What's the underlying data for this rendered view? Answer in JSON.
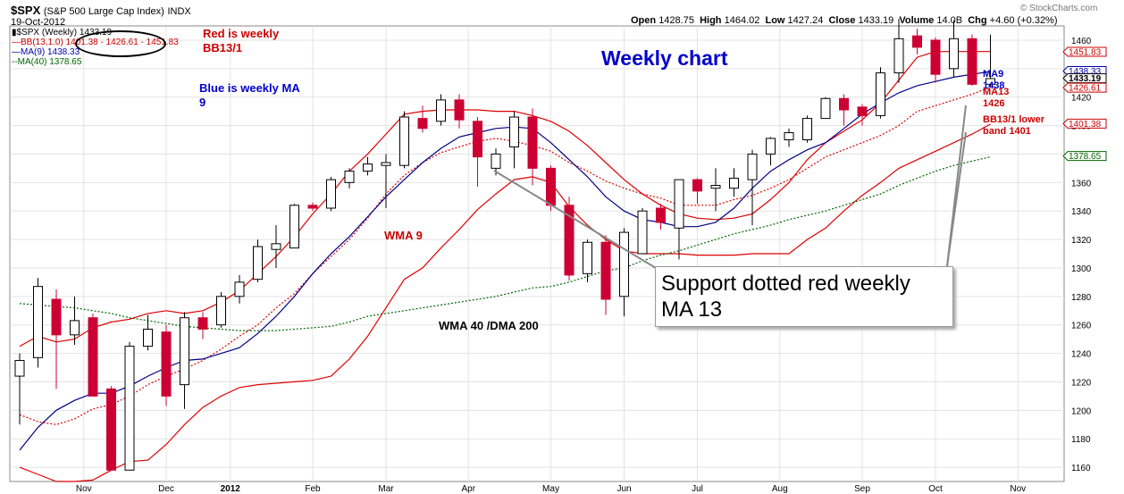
{
  "header": {
    "symbol": "$SPX",
    "name": "(S&P 500 Large Cap Index)",
    "exchange": "INDX",
    "date": "19-Oct-2012",
    "open_label": "Open",
    "open": "1428.75",
    "high_label": "High",
    "high": "1464.02",
    "low_label": "Low",
    "low": "1427.24",
    "close_label": "Close",
    "close": "1433.19",
    "volume_label": "Volume",
    "volume": "14.0B",
    "chg_label": "Chg",
    "chg": "+4.60 (+0.32%)",
    "watermark": "© StockCharts.com"
  },
  "legend": [
    {
      "text": "$SPX (Weekly) 1433.19",
      "color": "#000000",
      "marker": "candle"
    },
    {
      "text": "BB(13,1.0) 1401.38 - 1426.61 - 1451.83",
      "color": "#cc0000",
      "marker": "line"
    },
    {
      "text": "MA(9) 1438.33",
      "color": "#0000aa",
      "marker": "line"
    },
    {
      "text": "MA(40) 1378.65",
      "color": "#006600",
      "marker": "dotted"
    }
  ],
  "annotations": {
    "red_weekly": "Red is weekly\nBB13/1",
    "blue_weekly": "Blue is weekly MA\n9",
    "weekly_chart": "Weekly chart",
    "wma9": "WMA 9",
    "wma40": "WMA 40 /DMA 200",
    "support": "Support dotted red weekly\nMA 13",
    "ma9_note": "MA9\n1438",
    "ma13_note": "MA13\n1426",
    "bb_note": "BB13/1 lower\nband 1401"
  },
  "chart_data": {
    "type": "candlestick",
    "title": "$SPX (S&P 500 Large Cap Index) INDX",
    "ylim": [
      1150,
      1470
    ],
    "y_ticks": [
      1160,
      1180,
      1200,
      1220,
      1240,
      1260,
      1280,
      1300,
      1320,
      1340,
      1360,
      1380,
      1400,
      1420,
      1440,
      1460
    ],
    "x_tick_labels": [
      "Nov",
      "Dec",
      "2012",
      "Feb",
      "Mar",
      "Apr",
      "May",
      "Jun",
      "Jul",
      "Aug",
      "Sep",
      "Oct",
      "Nov"
    ],
    "x_tick_index": [
      3.5,
      8,
      11.5,
      16,
      20,
      24.5,
      29,
      33,
      37,
      41.5,
      46,
      50,
      54.5
    ],
    "grid": true,
    "price_labels": [
      {
        "value": 1451.83,
        "text": "1451.83",
        "color": "#cc0000"
      },
      {
        "value": 1438.33,
        "text": "1438.33",
        "color": "#0000aa"
      },
      {
        "value": 1433.19,
        "text": "1433.19",
        "color": "#000000"
      },
      {
        "value": 1426.61,
        "text": "1426.61",
        "color": "#cc0000"
      },
      {
        "value": 1401.38,
        "text": "1401.38",
        "color": "#cc0000"
      },
      {
        "value": 1378.65,
        "text": "1378.65",
        "color": "#006600"
      }
    ],
    "candles": [
      [
        1224,
        1235,
        1190,
        1240
      ],
      [
        1237,
        1287,
        1230,
        1293
      ],
      [
        1278,
        1253,
        1215,
        1285
      ],
      [
        1253,
        1263,
        1246,
        1280
      ],
      [
        1265,
        1210,
        1210,
        1268
      ],
      [
        1215,
        1158,
        1158,
        1217
      ],
      [
        1158,
        1245,
        1158,
        1248
      ],
      [
        1245,
        1257,
        1242,
        1267
      ],
      [
        1255,
        1210,
        1203,
        1260
      ],
      [
        1218,
        1265,
        1201,
        1269
      ],
      [
        1265,
        1257,
        1250,
        1269
      ],
      [
        1260,
        1280,
        1258,
        1283
      ],
      [
        1280,
        1290,
        1275,
        1295
      ],
      [
        1292,
        1315,
        1290,
        1320
      ],
      [
        1313,
        1317,
        1300,
        1330
      ],
      [
        1314,
        1344,
        1314,
        1345
      ],
      [
        1344,
        1342,
        1340,
        1346
      ],
      [
        1342,
        1362,
        1340,
        1364
      ],
      [
        1360,
        1368,
        1356,
        1370
      ],
      [
        1368,
        1373,
        1365,
        1378
      ],
      [
        1372,
        1374,
        1342,
        1380
      ],
      [
        1372,
        1406,
        1370,
        1410
      ],
      [
        1405,
        1398,
        1395,
        1414
      ],
      [
        1403,
        1418,
        1400,
        1422
      ],
      [
        1418,
        1404,
        1398,
        1422
      ],
      [
        1403,
        1378,
        1357,
        1406
      ],
      [
        1370,
        1380,
        1365,
        1384
      ],
      [
        1385,
        1406,
        1370,
        1410
      ],
      [
        1406,
        1370,
        1358,
        1412
      ],
      [
        1370,
        1344,
        1340,
        1372
      ],
      [
        1344,
        1295,
        1291,
        1350
      ],
      [
        1296,
        1318,
        1290,
        1320
      ],
      [
        1318,
        1278,
        1267,
        1323
      ],
      [
        1280,
        1325,
        1266,
        1328
      ],
      [
        1310,
        1340,
        1310,
        1342
      ],
      [
        1342,
        1332,
        1327,
        1345
      ],
      [
        1328,
        1362,
        1306,
        1362
      ],
      [
        1362,
        1354,
        1345,
        1363
      ],
      [
        1356,
        1358,
        1340,
        1370
      ],
      [
        1356,
        1363,
        1350,
        1370
      ],
      [
        1362,
        1380,
        1330,
        1383
      ],
      [
        1380,
        1391,
        1372,
        1392
      ],
      [
        1390,
        1395,
        1385,
        1398
      ],
      [
        1390,
        1405,
        1388,
        1407
      ],
      [
        1405,
        1419,
        1405,
        1420
      ],
      [
        1419,
        1411,
        1400,
        1422
      ],
      [
        1413,
        1407,
        1400,
        1415
      ],
      [
        1407,
        1437,
        1405,
        1441
      ],
      [
        1437,
        1461,
        1430,
        1475
      ],
      [
        1463,
        1455,
        1450,
        1468
      ],
      [
        1460,
        1436,
        1430,
        1462
      ],
      [
        1440,
        1461,
        1434,
        1474
      ],
      [
        1461,
        1429,
        1428,
        1464
      ],
      [
        1429,
        1433,
        1427,
        1464
      ]
    ],
    "series": [
      {
        "name": "BB(13,1.0) upper",
        "style": "solid",
        "color": "#dd0000",
        "values": [
          1245,
          1252,
          1248,
          1250,
          1258,
          1262,
          1264,
          1268,
          1270,
          1268,
          1270,
          1276,
          1284,
          1296,
          1308,
          1322,
          1338,
          1352,
          1368,
          1380,
          1394,
          1408,
          1410,
          1411,
          1411,
          1411,
          1410,
          1410,
          1407,
          1403,
          1396,
          1386,
          1374,
          1362,
          1352,
          1344,
          1338,
          1335,
          1334,
          1335,
          1338,
          1348,
          1360,
          1376,
          1388,
          1396,
          1404,
          1416,
          1432,
          1448,
          1452,
          1452,
          1452,
          1452
        ]
      },
      {
        "name": "BB(13,1.0) middle",
        "style": "dotted",
        "color": "#dd0000",
        "values": [
          1197,
          1192,
          1190,
          1194,
          1201,
          1204,
          1210,
          1218,
          1224,
          1229,
          1235,
          1243,
          1252,
          1260,
          1272,
          1282,
          1296,
          1308,
          1320,
          1335,
          1352,
          1365,
          1374,
          1381,
          1385,
          1389,
          1391,
          1389,
          1386,
          1382,
          1374,
          1368,
          1361,
          1356,
          1352,
          1349,
          1344,
          1344,
          1344,
          1348,
          1351,
          1356,
          1362,
          1370,
          1378,
          1383,
          1388,
          1393,
          1400,
          1410,
          1414,
          1418,
          1422,
          1427
        ]
      },
      {
        "name": "BB(13,1.0) lower",
        "style": "solid",
        "color": "#dd0000",
        "values": [
          1160,
          1155,
          1150,
          1150,
          1151,
          1158,
          1164,
          1165,
          1176,
          1190,
          1202,
          1210,
          1216,
          1218,
          1219,
          1220,
          1221,
          1224,
          1236,
          1252,
          1272,
          1292,
          1300,
          1314,
          1327,
          1341,
          1352,
          1362,
          1364,
          1360,
          1343,
          1330,
          1320,
          1312,
          1310,
          1310,
          1310,
          1309,
          1309,
          1309,
          1310,
          1310,
          1310,
          1320,
          1328,
          1340,
          1351,
          1360,
          1370,
          1376,
          1382,
          1388,
          1394,
          1401
        ]
      },
      {
        "name": "MA(9)",
        "style": "solid",
        "color": "#000088",
        "values": [
          1172,
          1188,
          1200,
          1207,
          1212,
          1212,
          1217,
          1224,
          1230,
          1235,
          1236,
          1240,
          1244,
          1254,
          1266,
          1280,
          1296,
          1310,
          1322,
          1336,
          1350,
          1362,
          1374,
          1384,
          1392,
          1395,
          1398,
          1399,
          1398,
          1388,
          1376,
          1364,
          1350,
          1340,
          1334,
          1332,
          1329,
          1329,
          1332,
          1342,
          1356,
          1368,
          1376,
          1383,
          1388,
          1398,
          1408,
          1416,
          1423,
          1428,
          1431,
          1434,
          1436,
          1438
        ]
      },
      {
        "name": "MA(40)",
        "style": "dotted",
        "color": "#006600",
        "values": [
          1275,
          1274,
          1273,
          1272,
          1270,
          1268,
          1265,
          1263,
          1261,
          1259,
          1258,
          1257,
          1256,
          1256,
          1256,
          1257,
          1258,
          1259,
          1262,
          1266,
          1268,
          1270,
          1272,
          1274,
          1276,
          1278,
          1280,
          1283,
          1286,
          1287,
          1290,
          1294,
          1298,
          1300,
          1305,
          1309,
          1312,
          1316,
          1320,
          1324,
          1327,
          1330,
          1334,
          1337,
          1340,
          1344,
          1348,
          1352,
          1358,
          1363,
          1368,
          1372,
          1375,
          1378
        ]
      }
    ]
  }
}
